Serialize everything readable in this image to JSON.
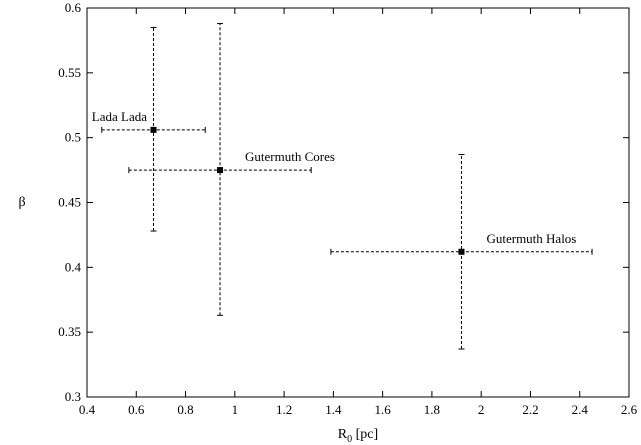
{
  "chart_data": {
    "type": "scatter",
    "xlabel_base": "R",
    "xlabel_sub": "0",
    "xlabel_unit": " [pc]",
    "ylabel": "β",
    "xlim": [
      0.4,
      2.6
    ],
    "ylim": [
      0.3,
      0.6
    ],
    "x_ticks": [
      "0.4",
      "0.6",
      "0.8",
      "1",
      "1.2",
      "1.4",
      "1.6",
      "1.8",
      "2",
      "2.2",
      "2.4",
      "2.6"
    ],
    "y_ticks": [
      "0.3",
      "0.35",
      "0.4",
      "0.45",
      "0.5",
      "0.55",
      "0.6"
    ],
    "points": [
      {
        "label": "Lada Lada",
        "x": 0.67,
        "y": 0.506,
        "x_min": 0.46,
        "x_max": 0.88,
        "y_min": 0.428,
        "y_max": 0.585,
        "label_pos": "upper-left"
      },
      {
        "label": "Gutermuth Cores",
        "x": 0.94,
        "y": 0.475,
        "x_min": 0.57,
        "x_max": 1.31,
        "y_min": 0.363,
        "y_max": 0.588,
        "label_pos": "upper-right"
      },
      {
        "label": "Gutermuth Halos",
        "x": 1.92,
        "y": 0.412,
        "x_min": 1.39,
        "x_max": 2.45,
        "y_min": 0.337,
        "y_max": 0.487,
        "label_pos": "upper-right"
      }
    ]
  }
}
